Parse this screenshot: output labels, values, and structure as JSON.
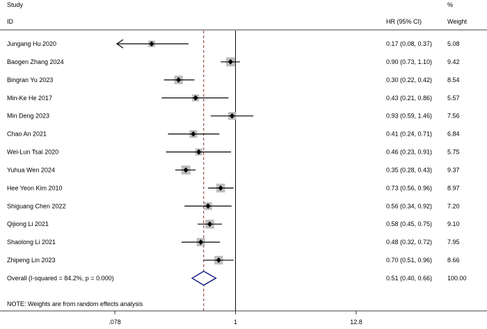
{
  "chart_data": {
    "type": "forest",
    "header": {
      "study": "Study",
      "id": "ID",
      "hr": "HR (95% CI)",
      "pct": "%",
      "weight": "Weight"
    },
    "rows": [
      {
        "study": "Jungang Hu 2020",
        "hr": 0.17,
        "lo": 0.08,
        "hi": 0.37,
        "ci_text": "0.17 (0.08, 0.37)",
        "weight": "5.08",
        "arrow_left": true
      },
      {
        "study": "Baogen Zhang 2024",
        "hr": 0.9,
        "lo": 0.73,
        "hi": 1.1,
        "ci_text": "0.90 (0.73, 1.10)",
        "weight": "9.42"
      },
      {
        "study": "Bingran Yu 2023",
        "hr": 0.3,
        "lo": 0.22,
        "hi": 0.42,
        "ci_text": "0.30 (0.22, 0.42)",
        "weight": "8.54"
      },
      {
        "study": "Min-Ke He 2017",
        "hr": 0.43,
        "lo": 0.21,
        "hi": 0.86,
        "ci_text": "0.43 (0.21, 0.86)",
        "weight": "5.57"
      },
      {
        "study": "Min Deng 2023",
        "hr": 0.93,
        "lo": 0.59,
        "hi": 1.46,
        "ci_text": "0.93 (0.59, 1.46)",
        "weight": "7.56"
      },
      {
        "study": "Chao An 2021",
        "hr": 0.41,
        "lo": 0.24,
        "hi": 0.71,
        "ci_text": "0.41 (0.24, 0.71)",
        "weight": "6.84"
      },
      {
        "study": "Wei-Lun Tsai 2020",
        "hr": 0.46,
        "lo": 0.23,
        "hi": 0.91,
        "ci_text": "0.46 (0.23, 0.91)",
        "weight": "5.75"
      },
      {
        "study": "Yuhua Wen 2024",
        "hr": 0.35,
        "lo": 0.28,
        "hi": 0.43,
        "ci_text": "0.35 (0.28, 0.43)",
        "weight": "9.37"
      },
      {
        "study": "Hee Yeon Kim 2010",
        "hr": 0.73,
        "lo": 0.56,
        "hi": 0.96,
        "ci_text": "0.73 (0.56, 0.96)",
        "weight": "8.97"
      },
      {
        "study": "Shiguang Chen 2022",
        "hr": 0.56,
        "lo": 0.34,
        "hi": 0.92,
        "ci_text": "0.56 (0.34, 0.92)",
        "weight": "7.20"
      },
      {
        "study": "Qijiong Li 2021",
        "hr": 0.58,
        "lo": 0.45,
        "hi": 0.75,
        "ci_text": "0.58 (0.45, 0.75)",
        "weight": "9.10"
      },
      {
        "study": "Shaolong Li 2021",
        "hr": 0.48,
        "lo": 0.32,
        "hi": 0.72,
        "ci_text": "0.48 (0.32, 0.72)",
        "weight": "7.95"
      },
      {
        "study": "Zhipeng Lin 2023",
        "hr": 0.7,
        "lo": 0.51,
        "hi": 0.96,
        "ci_text": "0.70 (0.51, 0.96)",
        "weight": "8.66"
      }
    ],
    "overall": {
      "label": "Overall  (I-squared = 84.2%, p = 0.000)",
      "hr": 0.51,
      "lo": 0.4,
      "hi": 0.66,
      "ci_text": "0.51 (0.40, 0.66)",
      "weight": "100.00"
    },
    "note": "NOTE: Weights are from random effects analysis",
    "x_scale": "log",
    "x_ticks": [
      {
        "value": 0.078,
        "label": ".078"
      },
      {
        "value": 1,
        "label": "1"
      },
      {
        "value": 12.8,
        "label": "12.8"
      }
    ],
    "null_line": 1,
    "colors": {
      "diamond": "#1a237e",
      "pooled_line": "#8b2a2a",
      "weight_box": "#bdbdbd",
      "line": "#000000"
    }
  }
}
